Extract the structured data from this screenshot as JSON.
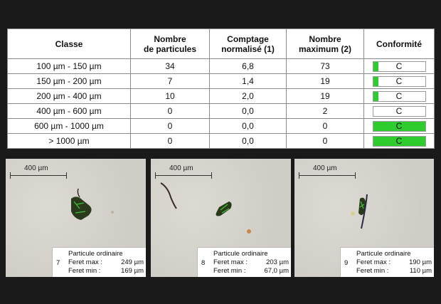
{
  "table": {
    "headers": {
      "classe": "Classe",
      "nombre": [
        "Nombre",
        "de particules"
      ],
      "comptage": [
        "Comptage",
        "normalisé (1)"
      ],
      "max": [
        "Nombre",
        "maximum (2)"
      ],
      "conformite": "Conformité"
    },
    "rows": [
      {
        "classe": "100 µm - 150 µm",
        "nombre": "34",
        "comptage": "6,8",
        "max": "73",
        "conf": "C",
        "fill": 0.1
      },
      {
        "classe": "150 µm - 200 µm",
        "nombre": "7",
        "comptage": "1,4",
        "max": "19",
        "conf": "C",
        "fill": 0.1
      },
      {
        "classe": "200 µm - 400 µm",
        "nombre": "10",
        "comptage": "2,0",
        "max": "19",
        "conf": "C",
        "fill": 0.1
      },
      {
        "classe": "400 µm - 600 µm",
        "nombre": "0",
        "comptage": "0,0",
        "max": "2",
        "conf": "C",
        "fill": 0
      },
      {
        "classe": "600 µm - 1000 µm",
        "nombre": "0",
        "comptage": "0,0",
        "max": "0",
        "conf": "C",
        "fill": 1
      },
      {
        "classe": "> 1000 µm",
        "nombre": "0",
        "comptage": "0,0",
        "max": "0",
        "conf": "C",
        "fill": 1
      }
    ],
    "conf_color": "#2fcc2f"
  },
  "panels": [
    {
      "scale": "400 µm",
      "num": "7",
      "type": "Particule ordinaire",
      "fmax_label": "Feret max :",
      "fmax": "249 µm",
      "fmin_label": "Feret min :",
      "fmin": "169 µm"
    },
    {
      "scale": "400 µm",
      "num": "8",
      "type": "Particule ordinaire",
      "fmax_label": "Feret max :",
      "fmax": "203 µm",
      "fmin_label": "Feret min :",
      "fmin": "67,0 µm"
    },
    {
      "scale": "400 µm",
      "num": "9",
      "type": "Particule ordinaire",
      "fmax_label": "Feret max :",
      "fmax": "190 µm",
      "fmin_label": "Feret min :",
      "fmin": "110 µm"
    }
  ]
}
